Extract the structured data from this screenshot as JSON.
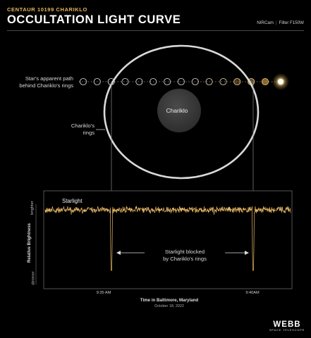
{
  "header": {
    "subtitle": "CENTAUR 10199 CHARIKLO",
    "title": "OCCULTATION LIGHT CURVE",
    "instrument": "NIRCam",
    "filter": "Filter F150W"
  },
  "diagram": {
    "path_label_line1": "Star's apparent path",
    "path_label_line2": "behind Chariklo's rings",
    "rings_label_line1": "Chariklo's",
    "rings_label_line2": "rings",
    "body_label": "Chariklo",
    "star_positions_count": 14
  },
  "chart_data": {
    "type": "line",
    "series": [
      {
        "name": "Starlight"
      }
    ],
    "ylabel": "Relative Brightness",
    "y_top_label": "brighter",
    "y_bottom_label": "dimmer",
    "xlabel": "Time in Baltimore, Maryland",
    "date": "October 18, 2022",
    "xticks": [
      "9:35 AM",
      "9:40AM"
    ],
    "annotation_line1": "Starlight blocked",
    "annotation_line2": "by Chariklo's rings",
    "dips": [
      "9:35 AM",
      "9:40AM"
    ]
  },
  "colors": {
    "accent": "#e7b65a",
    "curve": "#e9b966",
    "ring": "#d9d9d9",
    "chariklo": "#3b3b3b"
  },
  "logo": {
    "name": "WEBB",
    "tagline": "SPACE TELESCOPE"
  }
}
